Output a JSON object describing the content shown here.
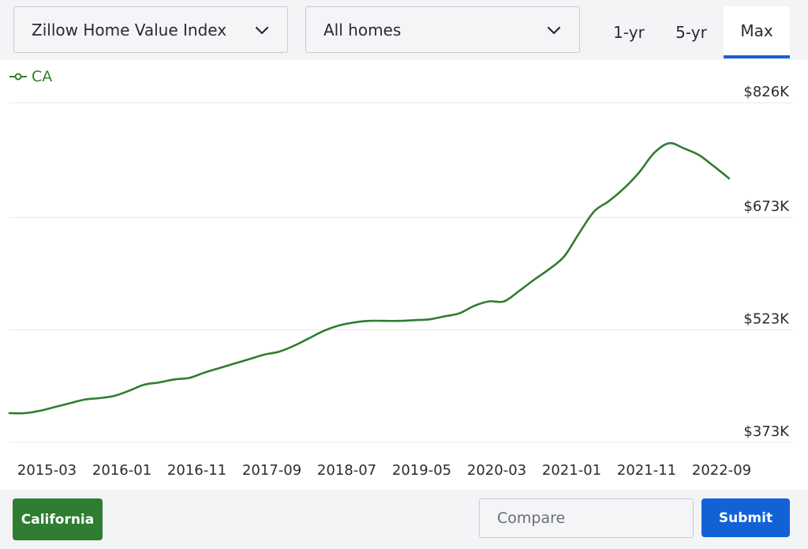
{
  "controls": {
    "metric_select": "Zillow Home Value Index",
    "type_select": "All homes",
    "ranges": [
      "1-yr",
      "5-yr",
      "Max"
    ],
    "active_range": "Max"
  },
  "legend": {
    "label": "CA"
  },
  "footer": {
    "region_button": "California",
    "compare_placeholder": "Compare",
    "submit_label": "Submit"
  },
  "colors": {
    "series": "#2e7d32",
    "accent": "#1262d6",
    "grid": "#e9e9ee",
    "text": "#2a2a33"
  },
  "chart_data": {
    "type": "line",
    "title": "",
    "xlabel": "",
    "ylabel": "",
    "x_ticks": [
      "2015-03",
      "2016-01",
      "2016-11",
      "2017-09",
      "2018-07",
      "2019-05",
      "2020-03",
      "2021-01",
      "2021-11",
      "2022-09"
    ],
    "y_ticks": [
      "$373K",
      "$523K",
      "$673K",
      "$826K"
    ],
    "y_tick_values": [
      373,
      523,
      673,
      826
    ],
    "ylim": [
      373,
      826
    ],
    "xlim": [
      "2014-10",
      "2022-10"
    ],
    "grid": true,
    "legend_position": "top-left",
    "series": [
      {
        "name": "CA",
        "x": [
          "2014-10",
          "2014-12",
          "2015-02",
          "2015-04",
          "2015-06",
          "2015-08",
          "2015-10",
          "2015-12",
          "2016-02",
          "2016-04",
          "2016-06",
          "2016-08",
          "2016-10",
          "2016-12",
          "2017-02",
          "2017-04",
          "2017-06",
          "2017-08",
          "2017-10",
          "2017-12",
          "2018-02",
          "2018-04",
          "2018-06",
          "2018-08",
          "2018-10",
          "2018-12",
          "2019-02",
          "2019-04",
          "2019-06",
          "2019-08",
          "2019-10",
          "2019-12",
          "2020-02",
          "2020-04",
          "2020-06",
          "2020-08",
          "2020-10",
          "2020-12",
          "2021-02",
          "2021-04",
          "2021-06",
          "2021-08",
          "2021-10",
          "2021-12",
          "2022-02",
          "2022-04",
          "2022-06",
          "2022-08",
          "2022-10"
        ],
        "values": [
          412,
          412,
          415,
          420,
          425,
          430,
          432,
          435,
          442,
          450,
          453,
          457,
          459,
          466,
          472,
          478,
          484,
          490,
          494,
          502,
          512,
          522,
          529,
          533,
          535,
          535,
          535,
          536,
          537,
          541,
          545,
          555,
          561,
          561,
          575,
          590,
          604,
          621,
          652,
          681,
          695,
          712,
          733,
          759,
          772,
          765,
          756,
          741,
          725
        ]
      }
    ]
  }
}
